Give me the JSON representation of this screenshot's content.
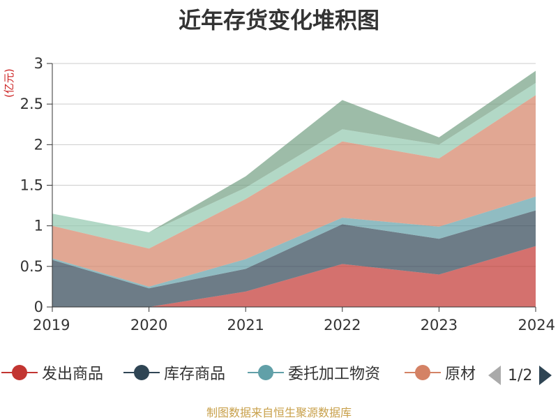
{
  "chart_data": {
    "type": "area",
    "stacked": true,
    "title": "近年存货变化堆积图",
    "y_unit_label": "(亿元)",
    "x": [
      "2019",
      "2020",
      "2021",
      "2022",
      "2023",
      "2024"
    ],
    "ylim": [
      0,
      3
    ],
    "yticks": [
      "0",
      "0.5",
      "1",
      "1.5",
      "2",
      "2.5",
      "3"
    ],
    "grid": true,
    "legend_position": "bottom",
    "series": [
      {
        "name": "发出商品",
        "color": "#c23531",
        "values": [
          0.0,
          0.0,
          0.19,
          0.53,
          0.4,
          0.75
        ]
      },
      {
        "name": "库存商品",
        "color": "#2f4554",
        "values": [
          0.58,
          0.23,
          0.28,
          0.49,
          0.44,
          0.44
        ]
      },
      {
        "name": "委托加工物资",
        "color": "#61a0a8",
        "values": [
          0.02,
          0.02,
          0.12,
          0.08,
          0.15,
          0.17
        ]
      },
      {
        "name": "原材料",
        "color": "#d48265",
        "values": [
          0.4,
          0.47,
          0.74,
          0.94,
          0.84,
          1.25
        ]
      },
      {
        "name": "",
        "color": "#91c7ae",
        "values": [
          0.15,
          0.2,
          0.14,
          0.15,
          0.17,
          0.15
        ]
      },
      {
        "name": "",
        "color": "#749f83",
        "values": [
          0.0,
          0.0,
          0.14,
          0.36,
          0.09,
          0.15
        ]
      }
    ]
  },
  "legend": {
    "visible_labels": [
      "发出商品",
      "库存商品",
      "委托加工物资",
      "原材"
    ],
    "pager_text": "1/2"
  },
  "footer": {
    "source": "制图数据来自恒生聚源数据库"
  }
}
